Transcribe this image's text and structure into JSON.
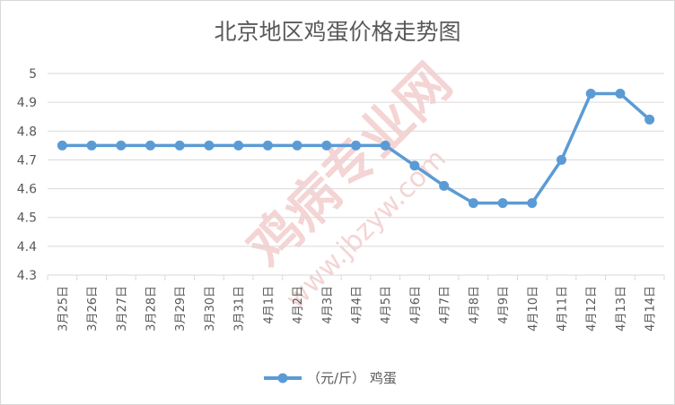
{
  "chart_data": {
    "type": "line",
    "title": "北京地区鸡蛋价格走势图",
    "categories": [
      "3月25日",
      "3月26日",
      "3月27日",
      "3月28日",
      "3月29日",
      "3月30日",
      "3月31日",
      "4月1日",
      "4月2日",
      "4月3日",
      "4月4日",
      "4月5日",
      "4月6日",
      "4月7日",
      "4月8日",
      "4月9日",
      "4月10日",
      "4月11日",
      "4月12日",
      "4月13日",
      "4月14日"
    ],
    "series": [
      {
        "name": "（元/斤） 鸡蛋",
        "values": [
          4.75,
          4.75,
          4.75,
          4.75,
          4.75,
          4.75,
          4.75,
          4.75,
          4.75,
          4.75,
          4.75,
          4.75,
          4.68,
          4.61,
          4.55,
          4.55,
          4.55,
          4.7,
          4.93,
          4.93,
          4.84
        ]
      }
    ],
    "yticks": [
      "4.3",
      "4.4",
      "4.5",
      "4.6",
      "4.7",
      "4.8",
      "4.9",
      "5"
    ],
    "ylim": [
      4.3,
      5.0
    ],
    "xlabel": "",
    "ylabel": "",
    "grid": true,
    "legend": "bottom",
    "line_color": "#5b9bd5",
    "grid_color": "#d9d9d9"
  },
  "watermark": {
    "main": "鸡病专业网",
    "url": "www.jbzyw.com",
    "color": "#e8a0a0"
  }
}
